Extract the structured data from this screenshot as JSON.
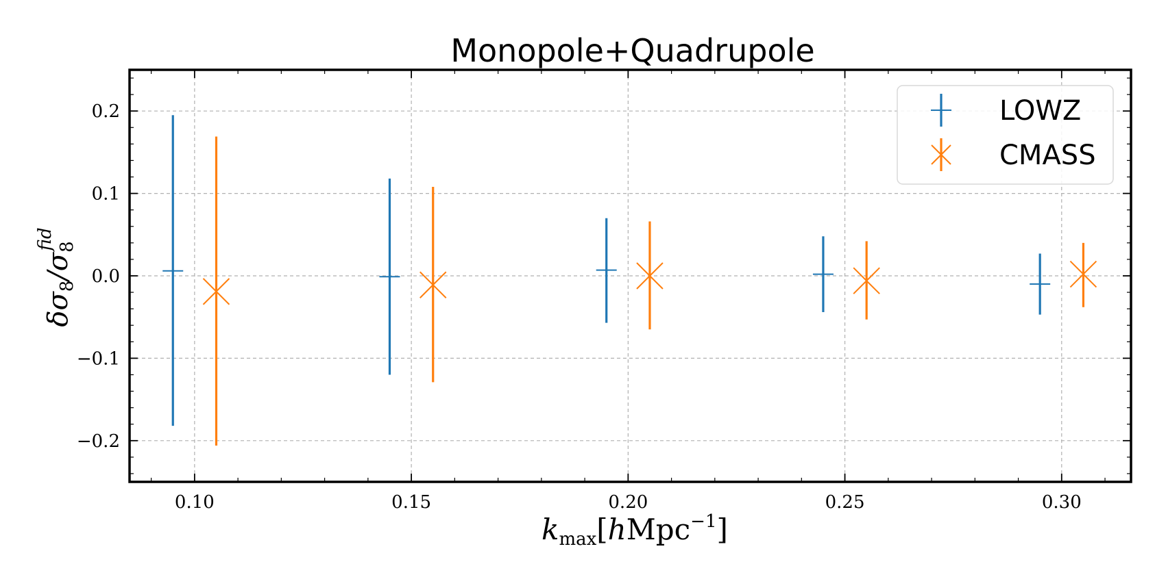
{
  "chart_data": {
    "type": "scatter",
    "title": "Monopole+Quadrupole",
    "xlabel": {
      "main": "k",
      "sub": "max",
      "bracket_open": "[",
      "h": "h",
      "unit": "Mpc",
      "exp": "−1",
      "bracket_close": "]"
    },
    "ylabel": {
      "delta": "δσ",
      "sub1": "8",
      "slash": "/σ",
      "sub2": "8",
      "sup": "fid"
    },
    "xlim": [
      0.085,
      0.316
    ],
    "ylim": [
      -0.25,
      0.25
    ],
    "xticks": [
      0.1,
      0.15,
      0.2,
      0.25,
      0.3
    ],
    "xtick_labels": [
      "0.10",
      "0.15",
      "0.20",
      "0.25",
      "0.30"
    ],
    "yticks": [
      -0.2,
      -0.1,
      0.0,
      0.1,
      0.2
    ],
    "ytick_labels": [
      "−0.2",
      "−0.1",
      "0.0",
      "0.1",
      "0.2"
    ],
    "grid": true,
    "legend_position": "top-right",
    "series": [
      {
        "name": "LOWZ",
        "color": "#1f77b4",
        "marker": "plus",
        "x": [
          0.095,
          0.145,
          0.195,
          0.245,
          0.295
        ],
        "y": [
          0.006,
          -0.001,
          0.007,
          0.002,
          -0.01
        ],
        "err_low": [
          -0.182,
          -0.12,
          -0.057,
          -0.044,
          -0.047
        ],
        "err_high": [
          0.195,
          0.118,
          0.07,
          0.048,
          0.027
        ]
      },
      {
        "name": "CMASS",
        "color": "#ff7f0e",
        "marker": "x",
        "x": [
          0.105,
          0.155,
          0.205,
          0.255,
          0.305
        ],
        "y": [
          -0.019,
          -0.011,
          0.0,
          -0.006,
          0.002
        ],
        "err_low": [
          -0.206,
          -0.129,
          -0.065,
          -0.053,
          -0.038
        ],
        "err_high": [
          0.169,
          0.108,
          0.066,
          0.042,
          0.04
        ]
      }
    ]
  }
}
